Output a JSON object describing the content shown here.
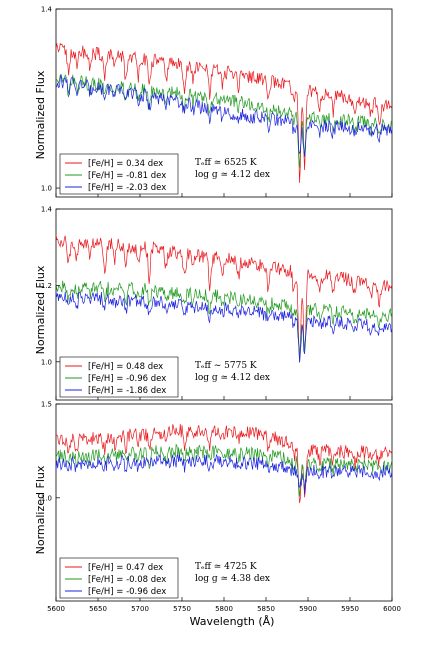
{
  "chart_data": {
    "type": "line",
    "x_label": "Wavelength (Å)",
    "y_label": "Normalized Flux",
    "x_ticks": [
      "5600",
      "5650",
      "5700",
      "5750",
      "5800",
      "5850",
      "5900",
      "5950",
      "6000"
    ],
    "xlim": [
      5600,
      6000
    ],
    "colors": {
      "red": "#e8181d",
      "green": "#229a22",
      "blue": "#1d23e0"
    },
    "panels": [
      {
        "ylim": [
          0.98,
          1.4
        ],
        "y_ticks": [
          "1.0",
          "1.4"
        ],
        "annotation": {
          "teff": "Tₑff ≃ 6525 K",
          "logg": "log g ≃ 4.12 dex"
        },
        "series": [
          {
            "name": "[Fe/H] = 0.34 dex",
            "color": "red",
            "continuum": [
              [
                5600,
                1.31
              ],
              [
                5700,
                1.29
              ],
              [
                5800,
                1.26
              ],
              [
                5900,
                1.22
              ],
              [
                6000,
                1.18
              ]
            ]
          },
          {
            "name": "[Fe/H] = -0.81 dex",
            "color": "green",
            "continuum": [
              [
                5600,
                1.245
              ],
              [
                5700,
                1.22
              ],
              [
                5800,
                1.2
              ],
              [
                5900,
                1.16
              ],
              [
                6000,
                1.14
              ]
            ]
          },
          {
            "name": "[Fe/H] = -2.03 dex",
            "color": "blue",
            "continuum": [
              [
                5600,
                1.24
              ],
              [
                5700,
                1.21
              ],
              [
                5800,
                1.17
              ],
              [
                5900,
                1.14
              ],
              [
                6000,
                1.13
              ]
            ]
          }
        ]
      },
      {
        "ylim": [
          0.9,
          1.4
        ],
        "y_ticks": [
          "1.0",
          "1.2",
          "1.4"
        ],
        "annotation": {
          "teff": "Tₑff ~ 5775 K",
          "logg": "log g ≃ 4.12 dex"
        },
        "series": [
          {
            "name": "[Fe/H] = 0.48 dex",
            "color": "red",
            "continuum": [
              [
                5600,
                1.32
              ],
              [
                5700,
                1.3
              ],
              [
                5800,
                1.27
              ],
              [
                5900,
                1.23
              ],
              [
                6000,
                1.2
              ]
            ]
          },
          {
            "name": "[Fe/H] = -0.96 dex",
            "color": "green",
            "continuum": [
              [
                5600,
                1.2
              ],
              [
                5700,
                1.19
              ],
              [
                5800,
                1.17
              ],
              [
                5900,
                1.14
              ],
              [
                6000,
                1.12
              ]
            ]
          },
          {
            "name": "[Fe/H] = -1.86 dex",
            "color": "blue",
            "continuum": [
              [
                5600,
                1.175
              ],
              [
                5700,
                1.16
              ],
              [
                5800,
                1.14
              ],
              [
                5900,
                1.11
              ],
              [
                6000,
                1.09
              ]
            ]
          }
        ]
      },
      {
        "ylim": [
          0.45,
          1.5
        ],
        "y_ticks": [
          "1.0",
          "1.5"
        ],
        "annotation": {
          "teff": "Tₑff ≃ 4725 K",
          "logg": "log g ≃ 4.38 dex"
        },
        "series": [
          {
            "name": "[Fe/H] = 0.47 dex",
            "color": "red",
            "continuum": [
              [
                5600,
                1.3
              ],
              [
                5750,
                1.36
              ],
              [
                5850,
                1.34
              ],
              [
                5900,
                1.25
              ],
              [
                6000,
                1.24
              ]
            ]
          },
          {
            "name": "[Fe/H] = -0.08 dex",
            "color": "green",
            "continuum": [
              [
                5600,
                1.22
              ],
              [
                5750,
                1.25
              ],
              [
                5850,
                1.23
              ],
              [
                5900,
                1.18
              ],
              [
                6000,
                1.17
              ]
            ]
          },
          {
            "name": "[Fe/H] = -0.96 dex",
            "color": "blue",
            "continuum": [
              [
                5600,
                1.18
              ],
              [
                5750,
                1.2
              ],
              [
                5850,
                1.18
              ],
              [
                5900,
                1.14
              ],
              [
                6000,
                1.14
              ]
            ]
          }
        ]
      }
    ],
    "absorption_lines": [
      [
        5615,
        0.05
      ],
      [
        5625,
        0.04
      ],
      [
        5640,
        0.03
      ],
      [
        5658,
        0.05
      ],
      [
        5670,
        0.03
      ],
      [
        5683,
        0.05
      ],
      [
        5698,
        0.04
      ],
      [
        5711,
        0.06
      ],
      [
        5731,
        0.04
      ],
      [
        5753,
        0.05
      ],
      [
        5763,
        0.03
      ],
      [
        5783,
        0.06
      ],
      [
        5798,
        0.03
      ],
      [
        5817,
        0.03
      ],
      [
        5853,
        0.05
      ],
      [
        5883,
        0.04
      ],
      [
        5890,
        0.2
      ],
      [
        5896,
        0.17
      ],
      [
        5914,
        0.03
      ],
      [
        5930,
        0.04
      ],
      [
        5956,
        0.04
      ],
      [
        5975,
        0.03
      ],
      [
        5985,
        0.04
      ]
    ]
  }
}
